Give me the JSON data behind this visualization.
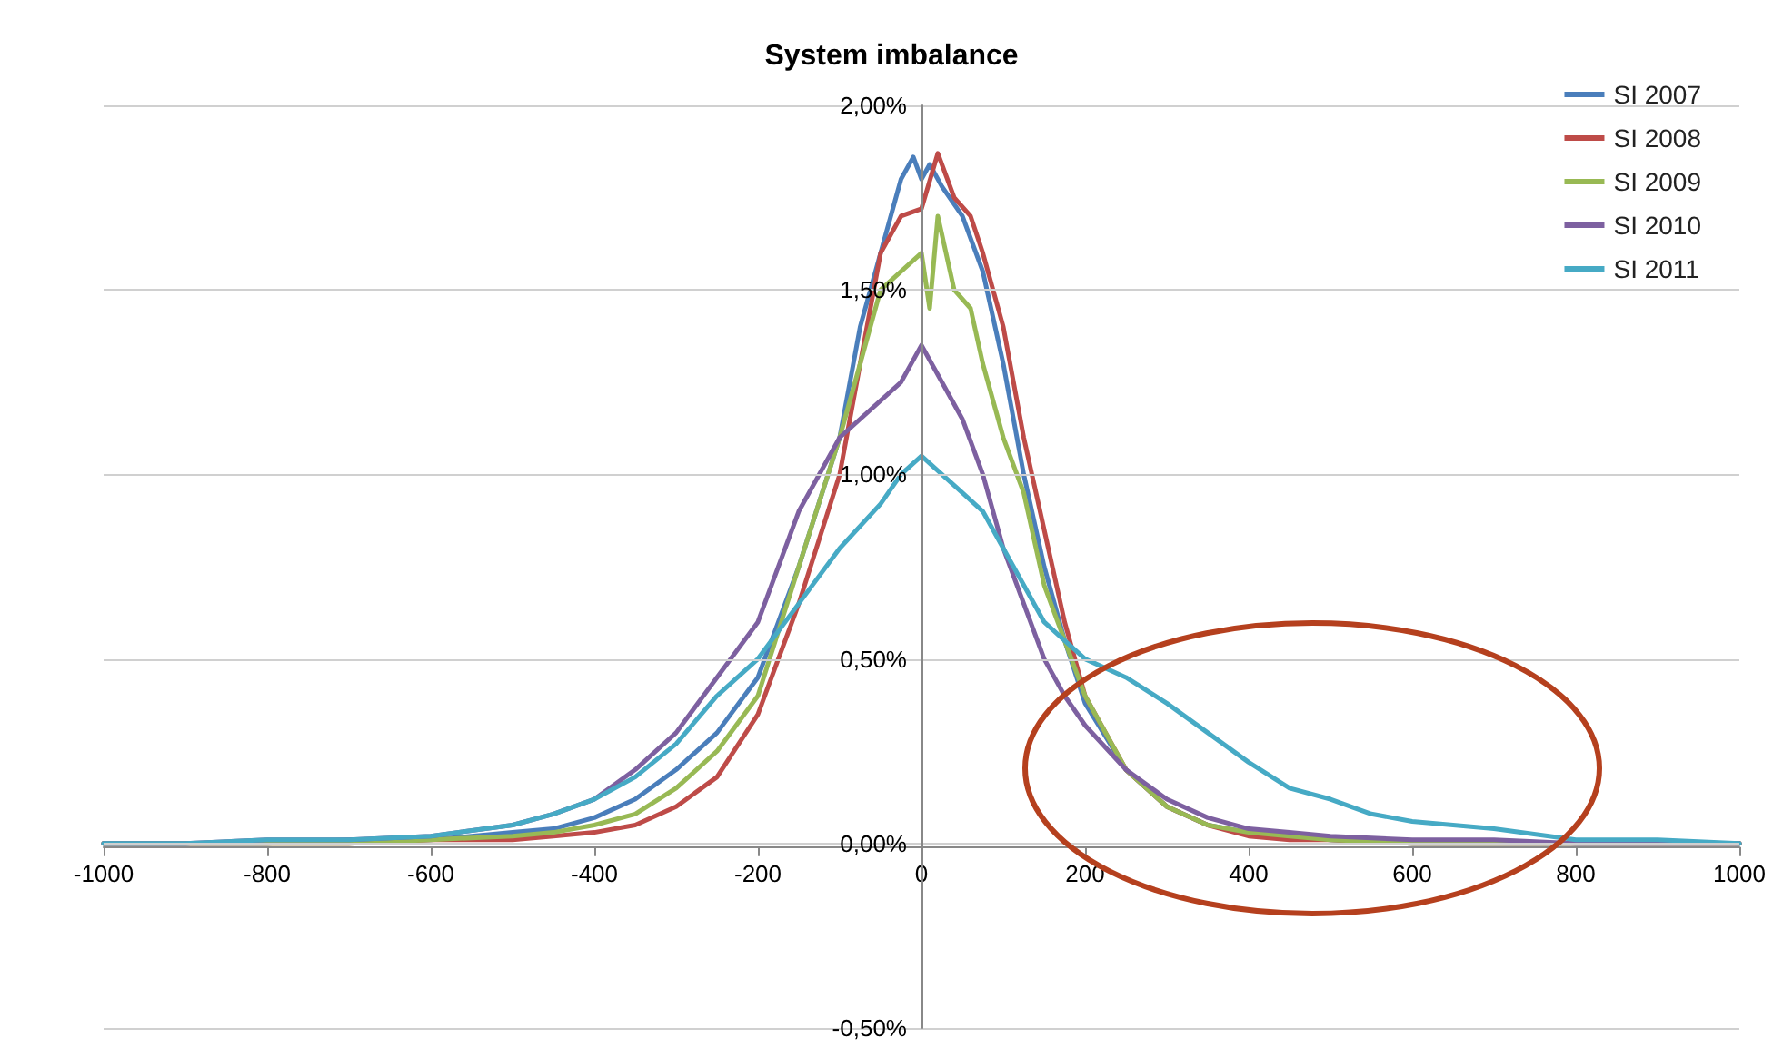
{
  "chart_data": {
    "type": "line",
    "title": "System imbalance",
    "xlim": [
      -1000,
      1000
    ],
    "xticks": [
      -1000,
      -800,
      -600,
      -400,
      -200,
      0,
      200,
      400,
      600,
      800,
      1000
    ],
    "ylim": [
      -0.5,
      2
    ],
    "yticks": [
      {
        "value": -0.5,
        "label": "-0,50%"
      },
      {
        "value": 0,
        "label": "0,00%"
      },
      {
        "value": 0.5,
        "label": "0,50%"
      },
      {
        "value": 1,
        "label": "1,00%"
      },
      {
        "value": 1.5,
        "label": "1,50%"
      },
      {
        "value": 2,
        "label": "2,00%"
      }
    ],
    "grid": "y",
    "legend": "top right",
    "marker": "none",
    "line_style": "solid",
    "series": [
      {
        "name": "SI 2007",
        "color": "#4a7ebb",
        "x": [
          -1000,
          -900,
          -800,
          -700,
          -600,
          -500,
          -450,
          -400,
          -350,
          -300,
          -250,
          -200,
          -150,
          -100,
          -75,
          -50,
          -25,
          -10,
          0,
          10,
          25,
          50,
          75,
          100,
          125,
          150,
          175,
          200,
          250,
          300,
          350,
          400,
          450,
          500,
          600,
          700,
          800,
          900,
          1000
        ],
        "values": [
          0,
          0,
          0,
          0.01,
          0.01,
          0.03,
          0.04,
          0.07,
          0.12,
          0.2,
          0.3,
          0.45,
          0.75,
          1.1,
          1.4,
          1.6,
          1.8,
          1.86,
          1.8,
          1.84,
          1.78,
          1.7,
          1.55,
          1.3,
          1.0,
          0.75,
          0.55,
          0.38,
          0.2,
          0.1,
          0.05,
          0.03,
          0.02,
          0.01,
          0,
          0,
          0,
          0,
          0
        ]
      },
      {
        "name": "SI 2008",
        "color": "#be4b48",
        "x": [
          -1000,
          -900,
          -800,
          -700,
          -600,
          -500,
          -450,
          -400,
          -350,
          -300,
          -250,
          -200,
          -150,
          -100,
          -75,
          -50,
          -25,
          0,
          20,
          40,
          60,
          75,
          100,
          125,
          150,
          175,
          200,
          250,
          300,
          350,
          400,
          450,
          500,
          600,
          700,
          800,
          900,
          1000
        ],
        "values": [
          0,
          0,
          0,
          0,
          0.01,
          0.01,
          0.02,
          0.03,
          0.05,
          0.1,
          0.18,
          0.35,
          0.65,
          1.0,
          1.3,
          1.6,
          1.7,
          1.72,
          1.87,
          1.75,
          1.7,
          1.6,
          1.4,
          1.1,
          0.85,
          0.6,
          0.4,
          0.2,
          0.1,
          0.05,
          0.02,
          0.01,
          0.01,
          0,
          0,
          0,
          0,
          0
        ]
      },
      {
        "name": "SI 2009",
        "color": "#98b954",
        "x": [
          -1000,
          -900,
          -800,
          -700,
          -600,
          -500,
          -450,
          -400,
          -350,
          -300,
          -250,
          -200,
          -150,
          -100,
          -75,
          -50,
          -25,
          0,
          10,
          20,
          40,
          60,
          75,
          100,
          125,
          150,
          175,
          200,
          250,
          300,
          350,
          400,
          450,
          500,
          600,
          700,
          800,
          900,
          1000
        ],
        "values": [
          0,
          0,
          0,
          0,
          0.01,
          0.02,
          0.03,
          0.05,
          0.08,
          0.15,
          0.25,
          0.4,
          0.75,
          1.1,
          1.3,
          1.5,
          1.55,
          1.6,
          1.45,
          1.7,
          1.5,
          1.45,
          1.3,
          1.1,
          0.95,
          0.7,
          0.55,
          0.4,
          0.2,
          0.1,
          0.05,
          0.03,
          0.02,
          0.01,
          0,
          0,
          0,
          0,
          0
        ]
      },
      {
        "name": "SI 2010",
        "color": "#7d60a0",
        "x": [
          -1000,
          -900,
          -800,
          -700,
          -600,
          -500,
          -450,
          -400,
          -350,
          -300,
          -250,
          -200,
          -150,
          -100,
          -50,
          -25,
          0,
          25,
          50,
          75,
          100,
          125,
          150,
          175,
          200,
          250,
          300,
          350,
          400,
          450,
          500,
          600,
          700,
          800,
          900,
          1000
        ],
        "values": [
          0,
          0,
          0.01,
          0.01,
          0.02,
          0.05,
          0.08,
          0.12,
          0.2,
          0.3,
          0.45,
          0.6,
          0.9,
          1.1,
          1.2,
          1.25,
          1.35,
          1.25,
          1.15,
          1.0,
          0.8,
          0.65,
          0.5,
          0.4,
          0.32,
          0.2,
          0.12,
          0.07,
          0.04,
          0.03,
          0.02,
          0.01,
          0.01,
          0,
          0,
          0
        ]
      },
      {
        "name": "SI 2011",
        "color": "#46aac5",
        "x": [
          -1000,
          -900,
          -800,
          -700,
          -600,
          -500,
          -450,
          -400,
          -350,
          -300,
          -250,
          -200,
          -150,
          -100,
          -50,
          -25,
          0,
          25,
          50,
          75,
          100,
          125,
          150,
          175,
          200,
          250,
          300,
          350,
          400,
          450,
          500,
          550,
          600,
          700,
          800,
          900,
          1000
        ],
        "values": [
          0,
          0,
          0.01,
          0.01,
          0.02,
          0.05,
          0.08,
          0.12,
          0.18,
          0.27,
          0.4,
          0.5,
          0.65,
          0.8,
          0.92,
          1.0,
          1.05,
          1.0,
          0.95,
          0.9,
          0.8,
          0.7,
          0.6,
          0.55,
          0.5,
          0.45,
          0.38,
          0.3,
          0.22,
          0.15,
          0.12,
          0.08,
          0.06,
          0.04,
          0.01,
          0.01,
          0
        ]
      }
    ]
  }
}
